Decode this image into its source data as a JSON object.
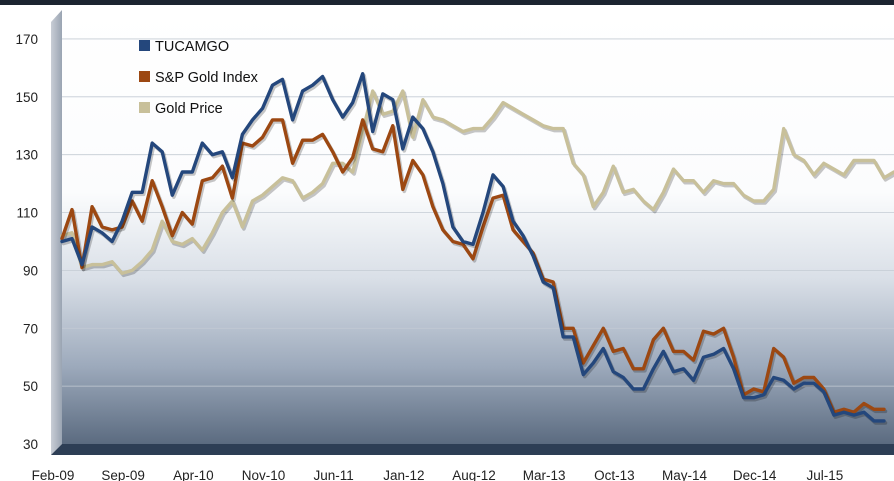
{
  "chart_data": {
    "type": "line",
    "title": "",
    "xlabel": "",
    "ylabel": "",
    "ylim": [
      30,
      180
    ],
    "yticks": [
      30,
      50,
      70,
      90,
      110,
      130,
      150,
      170
    ],
    "x_tick_labels": [
      "Feb-09",
      "Sep-09",
      "Apr-10",
      "Nov-10",
      "Jun-11",
      "Jan-12",
      "Aug-12",
      "Mar-13",
      "Oct-13",
      "May-14",
      "Dec-14",
      "Jul-15"
    ],
    "x_start_month": "Feb-09",
    "x_end_month": "Jan-16",
    "grid": true,
    "legend_position": "top-left",
    "series": [
      {
        "name": "TUCAMGO",
        "color": "#24477c",
        "points": [
          [
            "Feb-09",
            100
          ],
          [
            "Mar-09",
            101
          ],
          [
            "Apr-09",
            92
          ],
          [
            "May-09",
            105
          ],
          [
            "Jun-09",
            103
          ],
          [
            "Jul-09",
            100
          ],
          [
            "Aug-09",
            107
          ],
          [
            "Sep-09",
            117
          ],
          [
            "Oct-09",
            117
          ],
          [
            "Nov-09",
            134
          ],
          [
            "Dec-09",
            131
          ],
          [
            "Jan-10",
            116
          ],
          [
            "Feb-10",
            124
          ],
          [
            "Mar-10",
            124
          ],
          [
            "Apr-10",
            134
          ],
          [
            "May-10",
            130
          ],
          [
            "Jun-10",
            131
          ],
          [
            "Jul-10",
            122
          ],
          [
            "Aug-10",
            137
          ],
          [
            "Sep-10",
            142
          ],
          [
            "Oct-10",
            146
          ],
          [
            "Nov-10",
            154
          ],
          [
            "Dec-10",
            156
          ],
          [
            "Jan-11",
            142
          ],
          [
            "Feb-11",
            152
          ],
          [
            "Mar-11",
            154
          ],
          [
            "Apr-11",
            157
          ],
          [
            "May-11",
            149
          ],
          [
            "Jun-11",
            143
          ],
          [
            "Jul-11",
            148
          ],
          [
            "Aug-11",
            158
          ],
          [
            "Sep-11",
            138
          ],
          [
            "Oct-11",
            151
          ],
          [
            "Nov-11",
            149
          ],
          [
            "Dec-11",
            132
          ],
          [
            "Jan-12",
            143
          ],
          [
            "Feb-12",
            139
          ],
          [
            "Mar-12",
            131
          ],
          [
            "Apr-12",
            120
          ],
          [
            "May-12",
            105
          ],
          [
            "Jun-12",
            100
          ],
          [
            "Jul-12",
            99
          ],
          [
            "Aug-12",
            110
          ],
          [
            "Sep-12",
            123
          ],
          [
            "Oct-12",
            119
          ],
          [
            "Nov-12",
            107
          ],
          [
            "Dec-12",
            102
          ],
          [
            "Jan-13",
            95
          ],
          [
            "Feb-13",
            86
          ],
          [
            "Mar-13",
            84
          ],
          [
            "Apr-13",
            67
          ],
          [
            "May-13",
            67
          ],
          [
            "Jun-13",
            54
          ],
          [
            "Jul-13",
            58
          ],
          [
            "Aug-13",
            63
          ],
          [
            "Sep-13",
            55
          ],
          [
            "Oct-13",
            53
          ],
          [
            "Nov-13",
            49
          ],
          [
            "Dec-13",
            49
          ],
          [
            "Jan-14",
            56
          ],
          [
            "Feb-14",
            62
          ],
          [
            "Mar-14",
            55
          ],
          [
            "Apr-14",
            56
          ],
          [
            "May-14",
            52
          ],
          [
            "Jun-14",
            60
          ],
          [
            "Jul-14",
            61
          ],
          [
            "Aug-14",
            63
          ],
          [
            "Sep-14",
            56
          ],
          [
            "Oct-14",
            46
          ],
          [
            "Nov-14",
            46
          ],
          [
            "Dec-14",
            47
          ],
          [
            "Jan-15",
            53
          ],
          [
            "Feb-15",
            52
          ],
          [
            "Mar-15",
            49
          ],
          [
            "Apr-15",
            51
          ],
          [
            "May-15",
            51
          ],
          [
            "Jun-15",
            48
          ],
          [
            "Jul-15",
            40
          ],
          [
            "Aug-15",
            41
          ],
          [
            "Sep-15",
            40
          ],
          [
            "Oct-15",
            41
          ],
          [
            "Nov-15",
            38
          ],
          [
            "Dec-15",
            38
          ]
        ]
      },
      {
        "name": "S&P Gold Index",
        "color": "#9c4812",
        "points": [
          [
            "Feb-09",
            101
          ],
          [
            "Mar-09",
            111
          ],
          [
            "Apr-09",
            91
          ],
          [
            "May-09",
            112
          ],
          [
            "Jun-09",
            105
          ],
          [
            "Jul-09",
            104
          ],
          [
            "Aug-09",
            105
          ],
          [
            "Sep-09",
            114
          ],
          [
            "Oct-09",
            107
          ],
          [
            "Nov-09",
            121
          ],
          [
            "Dec-09",
            112
          ],
          [
            "Jan-10",
            102
          ],
          [
            "Feb-10",
            110
          ],
          [
            "Mar-10",
            106
          ],
          [
            "Apr-10",
            121
          ],
          [
            "May-10",
            122
          ],
          [
            "Jun-10",
            126
          ],
          [
            "Jul-10",
            115
          ],
          [
            "Aug-10",
            134
          ],
          [
            "Sep-10",
            133
          ],
          [
            "Oct-10",
            136
          ],
          [
            "Nov-10",
            142
          ],
          [
            "Dec-10",
            142
          ],
          [
            "Jan-11",
            127
          ],
          [
            "Feb-11",
            135
          ],
          [
            "Mar-11",
            135
          ],
          [
            "Apr-11",
            137
          ],
          [
            "May-11",
            131
          ],
          [
            "Jun-11",
            124
          ],
          [
            "Jul-11",
            129
          ],
          [
            "Aug-11",
            142
          ],
          [
            "Sep-11",
            132
          ],
          [
            "Oct-11",
            131
          ],
          [
            "Nov-11",
            140
          ],
          [
            "Dec-11",
            118
          ],
          [
            "Jan-12",
            128
          ],
          [
            "Feb-12",
            123
          ],
          [
            "Mar-12",
            112
          ],
          [
            "Apr-12",
            104
          ],
          [
            "May-12",
            100
          ],
          [
            "Jun-12",
            99
          ],
          [
            "Jul-12",
            94
          ],
          [
            "Aug-12",
            105
          ],
          [
            "Sep-12",
            115
          ],
          [
            "Oct-12",
            116
          ],
          [
            "Nov-12",
            104
          ],
          [
            "Dec-12",
            100
          ],
          [
            "Jan-13",
            96
          ],
          [
            "Feb-13",
            87
          ],
          [
            "Mar-13",
            86
          ],
          [
            "Apr-13",
            70
          ],
          [
            "May-13",
            70
          ],
          [
            "Jun-13",
            58
          ],
          [
            "Jul-13",
            64
          ],
          [
            "Aug-13",
            70
          ],
          [
            "Sep-13",
            62
          ],
          [
            "Oct-13",
            63
          ],
          [
            "Nov-13",
            56
          ],
          [
            "Dec-13",
            56
          ],
          [
            "Jan-14",
            66
          ],
          [
            "Feb-14",
            70
          ],
          [
            "Mar-14",
            62
          ],
          [
            "Apr-14",
            62
          ],
          [
            "May-14",
            59
          ],
          [
            "Jun-14",
            69
          ],
          [
            "Jul-14",
            68
          ],
          [
            "Aug-14",
            70
          ],
          [
            "Sep-14",
            60
          ],
          [
            "Oct-14",
            47
          ],
          [
            "Nov-14",
            49
          ],
          [
            "Dec-14",
            48
          ],
          [
            "Jan-15",
            63
          ],
          [
            "Feb-15",
            60
          ],
          [
            "Mar-15",
            51
          ],
          [
            "Apr-15",
            53
          ],
          [
            "May-15",
            53
          ],
          [
            "Jun-15",
            49
          ],
          [
            "Jul-15",
            41
          ],
          [
            "Aug-15",
            42
          ],
          [
            "Sep-15",
            41
          ],
          [
            "Oct-15",
            44
          ],
          [
            "Nov-15",
            42
          ],
          [
            "Dec-15",
            42
          ]
        ]
      },
      {
        "name": "Gold Price",
        "color": "#c8c09a",
        "points": [
          [
            "Feb-09",
            102
          ],
          [
            "Mar-09",
            103
          ],
          [
            "Apr-09",
            91
          ],
          [
            "May-09",
            92
          ],
          [
            "Jun-09",
            92
          ],
          [
            "Jul-09",
            93
          ],
          [
            "Aug-09",
            89
          ],
          [
            "Sep-09",
            90
          ],
          [
            "Oct-09",
            93
          ],
          [
            "Nov-09",
            97
          ],
          [
            "Dec-09",
            107
          ],
          [
            "Jan-10",
            100
          ],
          [
            "Feb-10",
            99
          ],
          [
            "Mar-10",
            101
          ],
          [
            "Apr-10",
            97
          ],
          [
            "May-10",
            103
          ],
          [
            "Jun-10",
            110
          ],
          [
            "Jul-10",
            114
          ],
          [
            "Aug-10",
            105
          ],
          [
            "Sep-10",
            114
          ],
          [
            "Oct-10",
            116
          ],
          [
            "Nov-10",
            119
          ],
          [
            "Dec-10",
            122
          ],
          [
            "Jan-11",
            121
          ],
          [
            "Feb-11",
            115
          ],
          [
            "Mar-11",
            117
          ],
          [
            "Apr-11",
            120
          ],
          [
            "May-11",
            127
          ],
          [
            "Jun-11",
            127
          ],
          [
            "Jul-11",
            124
          ],
          [
            "Aug-11",
            138
          ],
          [
            "Sep-11",
            152
          ],
          [
            "Oct-11",
            144
          ],
          [
            "Nov-11",
            145
          ],
          [
            "Dec-11",
            152
          ],
          [
            "Jan-12",
            136
          ],
          [
            "Feb-12",
            149
          ],
          [
            "Mar-12",
            143
          ],
          [
            "Apr-12",
            142
          ],
          [
            "May-12",
            140
          ],
          [
            "Jun-12",
            138
          ],
          [
            "Jul-12",
            139
          ],
          [
            "Aug-12",
            139
          ],
          [
            "Sep-12",
            143
          ],
          [
            "Oct-12",
            148
          ],
          [
            "Nov-12",
            146
          ],
          [
            "Dec-12",
            144
          ],
          [
            "Jan-13",
            142
          ],
          [
            "Feb-13",
            140
          ],
          [
            "Mar-13",
            139
          ],
          [
            "Apr-13",
            139
          ],
          [
            "May-13",
            127
          ],
          [
            "Jun-13",
            123
          ],
          [
            "Jul-13",
            112
          ],
          [
            "Aug-13",
            117
          ],
          [
            "Sep-13",
            126
          ],
          [
            "Oct-13",
            117
          ],
          [
            "Nov-13",
            118
          ],
          [
            "Dec-13",
            114
          ],
          [
            "Jan-14",
            111
          ],
          [
            "Feb-14",
            117
          ],
          [
            "Mar-14",
            125
          ],
          [
            "Apr-14",
            121
          ],
          [
            "May-14",
            121
          ],
          [
            "Jun-14",
            117
          ],
          [
            "Jul-14",
            121
          ],
          [
            "Aug-14",
            120
          ],
          [
            "Sep-14",
            120
          ],
          [
            "Oct-14",
            116
          ],
          [
            "Nov-14",
            114
          ],
          [
            "Dec-14",
            114
          ],
          [
            "Jan-15",
            118
          ],
          [
            "Feb-15",
            139
          ],
          [
            "Mar-15",
            130
          ],
          [
            "Apr-15",
            128
          ],
          [
            "May-15",
            123
          ],
          [
            "Jun-15",
            127
          ],
          [
            "Jul-15",
            125
          ],
          [
            "Aug-15",
            123
          ],
          [
            "Sep-15",
            128
          ],
          [
            "Oct-15",
            128
          ],
          [
            "Nov-15",
            128
          ],
          [
            "Dec-15",
            122
          ],
          [
            "Jan-16",
            124
          ]
        ]
      }
    ]
  }
}
